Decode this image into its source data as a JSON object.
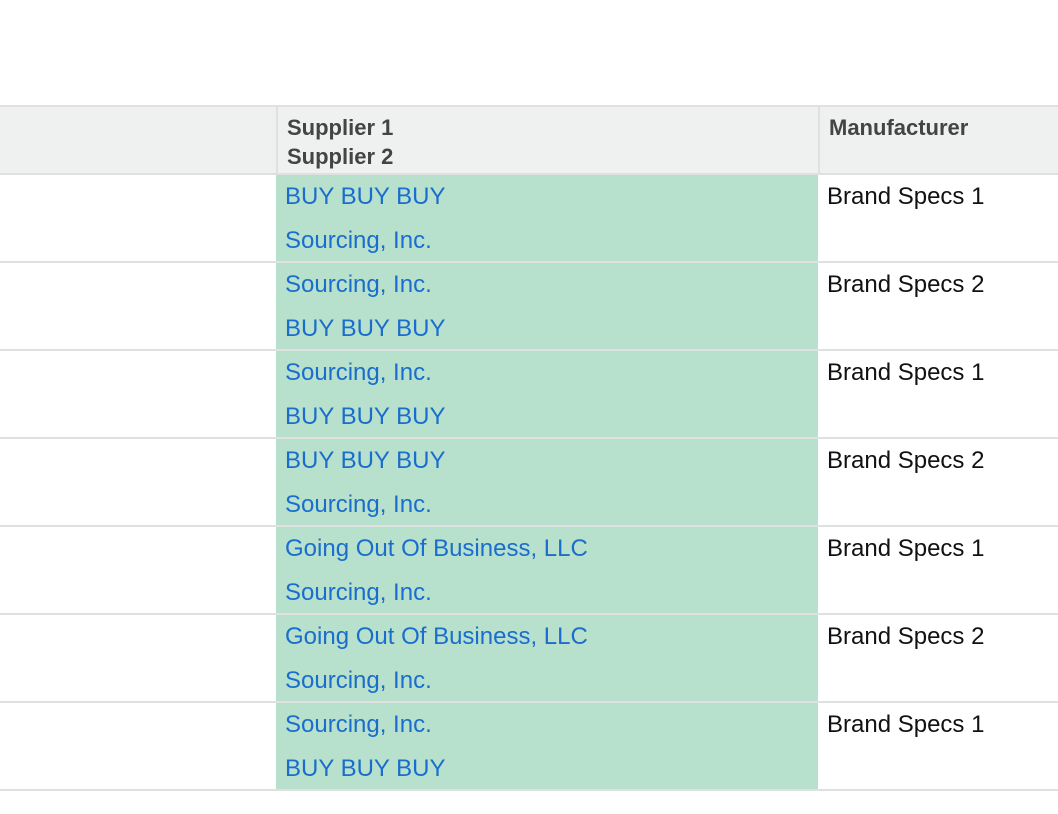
{
  "header": {
    "supplier1": "Supplier 1",
    "supplier2": "Supplier 2",
    "manufacturer": "Manufacturer"
  },
  "rows": [
    {
      "supplier1": "BUY BUY BUY",
      "supplier2": "Sourcing, Inc.",
      "manufacturer": "Brand Specs 1"
    },
    {
      "supplier1": "Sourcing, Inc.",
      "supplier2": "BUY BUY BUY",
      "manufacturer": "Brand Specs 2"
    },
    {
      "supplier1": "Sourcing, Inc.",
      "supplier2": "BUY BUY BUY",
      "manufacturer": "Brand Specs 1"
    },
    {
      "supplier1": "BUY BUY BUY",
      "supplier2": "Sourcing, Inc.",
      "manufacturer": "Brand Specs 2"
    },
    {
      "supplier1": "Going Out Of Business, LLC",
      "supplier2": "Sourcing, Inc.",
      "manufacturer": "Brand Specs 1"
    },
    {
      "supplier1": "Going Out Of Business, LLC",
      "supplier2": "Sourcing, Inc.",
      "manufacturer": "Brand Specs 2"
    },
    {
      "supplier1": "Sourcing, Inc.",
      "supplier2": "BUY BUY BUY",
      "manufacturer": "Brand Specs 1"
    }
  ],
  "colors": {
    "supplier_cell_bg": "#b7e1cd",
    "link": "#1a6dcc",
    "header_bg": "#eff1f0"
  }
}
